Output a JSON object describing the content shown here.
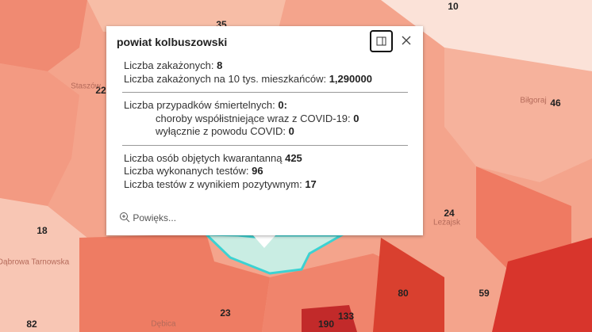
{
  "popup": {
    "title": "powiat kolbuszowski",
    "sections": [
      [
        {
          "label": "Liczba zakażonych:",
          "value": "8"
        },
        {
          "label": "Liczba zakażonych na 10 tys. mieszkańców:",
          "value": "1,290000"
        }
      ],
      [
        {
          "label": "Liczba przypadków śmiertelnych:",
          "value": "0:"
        },
        {
          "label": "choroby współistniejące wraz z COVID-19:",
          "value": "0"
        },
        {
          "label": "wyłącznie z powodu COVID:",
          "value": "0"
        }
      ],
      [
        {
          "label": "Liczba osób objętych kwarantanną",
          "value": "425"
        },
        {
          "label": "Liczba wykonanych testów:",
          "value": "96"
        },
        {
          "label": "Liczba testów z wynikiem pozytywnym:",
          "value": "17"
        }
      ]
    ],
    "zoom": "Powięks..."
  },
  "map": {
    "labels": [
      "35",
      "10",
      "22",
      "46",
      "Staszów",
      "Biłgoraj",
      "18",
      "24",
      "Leżajsk",
      "Dąbrowa Tarnowska",
      "23",
      "80",
      "59",
      "82",
      "Dębica",
      "190",
      "133"
    ]
  }
}
